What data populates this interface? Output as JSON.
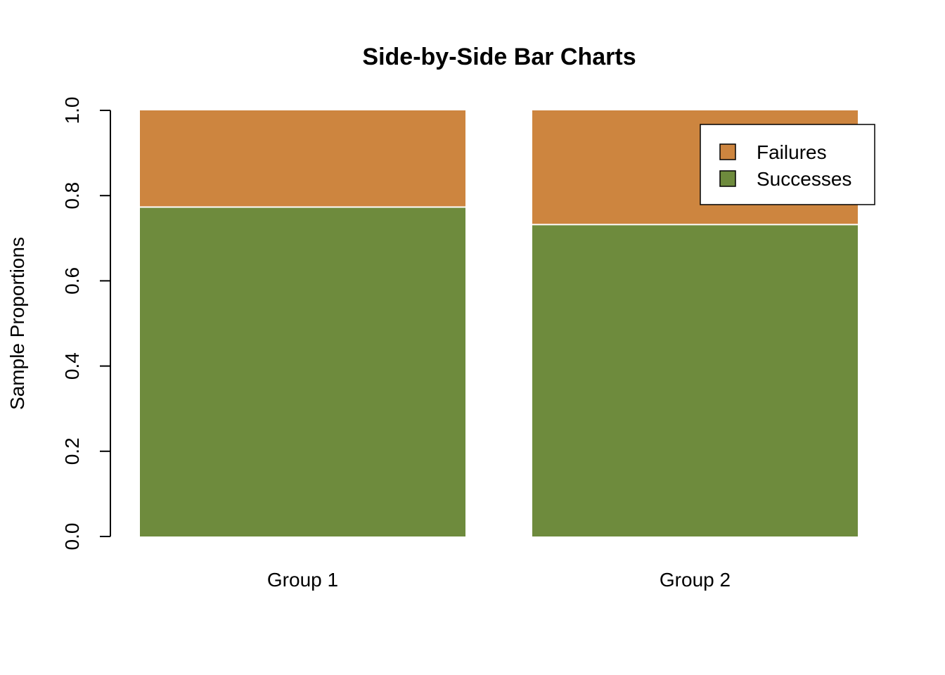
{
  "chart_data": {
    "type": "bar",
    "stacked": true,
    "title": "Side-by-Side Bar Charts",
    "xlabel": "",
    "ylabel": "Sample Proportions",
    "ylim": [
      0,
      1
    ],
    "yticks": [
      "0.0",
      "0.2",
      "0.4",
      "0.6",
      "0.8",
      "1.0"
    ],
    "categories": [
      "Group 1",
      "Group 2"
    ],
    "series": [
      {
        "name": "Successes",
        "values": [
          0.773,
          0.732
        ],
        "color": "#6E8B3D"
      },
      {
        "name": "Failures",
        "values": [
          0.227,
          0.268
        ],
        "color": "#CD853F"
      }
    ],
    "legend": {
      "placement": "top-right",
      "entries": [
        "Failures",
        "Successes"
      ]
    }
  }
}
